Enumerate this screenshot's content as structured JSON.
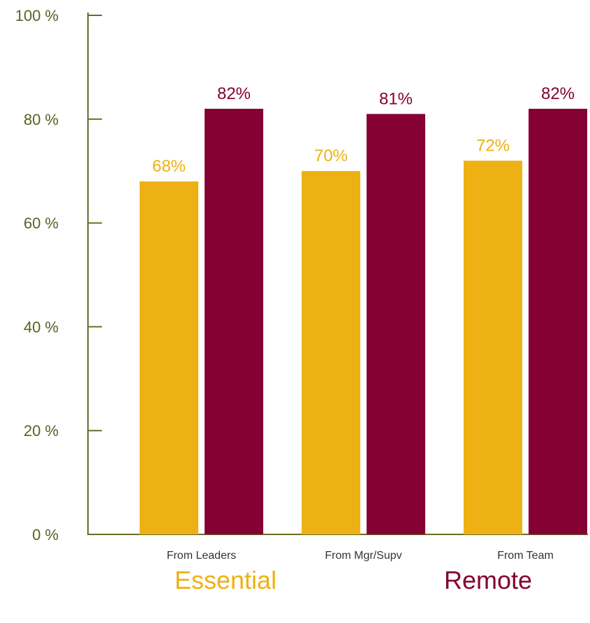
{
  "chart_data": {
    "type": "bar",
    "categories": [
      "From Leaders",
      "From Mgr/Supv",
      "From Team"
    ],
    "series": [
      {
        "name": "Essential",
        "values": [
          68,
          70,
          72
        ],
        "labels": [
          "68%",
          "70%",
          "72%"
        ],
        "color": "#EDB113"
      },
      {
        "name": "Remote",
        "values": [
          82,
          81,
          82
        ],
        "labels": [
          "82%",
          "81%",
          "82%"
        ],
        "color": "#850033"
      }
    ],
    "ylim": [
      0,
      100
    ],
    "yticks": [
      0,
      20,
      40,
      60,
      80,
      100
    ],
    "ytick_labels": [
      "0 %",
      "20 %",
      "40 %",
      "60 %",
      "80 %",
      "100 %"
    ],
    "axis_color": "#6B6B2A",
    "tick_label_color": "#5E5E26",
    "category_label_color": "#333333",
    "grid": false,
    "legend_position": "bottom"
  }
}
